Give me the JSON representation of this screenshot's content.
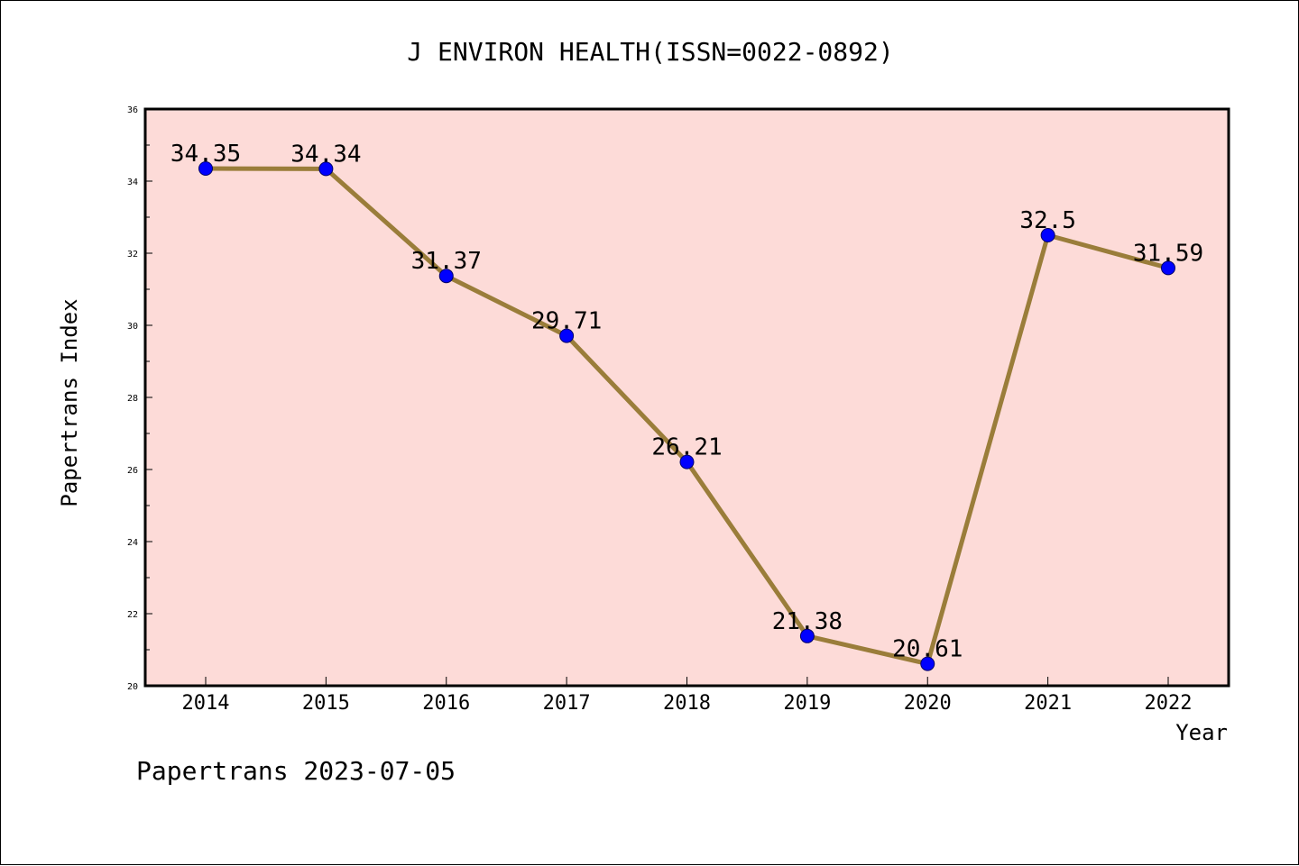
{
  "chart_data": {
    "type": "line",
    "title": "J ENVIRON HEALTH(ISSN=0022-0892)",
    "xlabel": "Year",
    "ylabel": "Papertrans Index",
    "categories": [
      "2014",
      "2015",
      "2016",
      "2017",
      "2018",
      "2019",
      "2020",
      "2021",
      "2022"
    ],
    "series": [
      {
        "values": [
          34.35,
          34.34,
          31.37,
          29.71,
          26.21,
          21.38,
          20.61,
          32.5,
          31.59
        ],
        "data_labels": [
          "34.35",
          "34.34",
          "31.37",
          "29.71",
          "26.21",
          "21.38",
          "20.61",
          "32.5",
          "31.59"
        ],
        "line_color": "#9a7d3a",
        "marker_color": "#0000ff"
      }
    ],
    "ylim": [
      20,
      36
    ],
    "y_ticks": [
      "20",
      "22",
      "24",
      "26",
      "28",
      "30",
      "32",
      "34",
      "36"
    ],
    "grid": false,
    "plot_background": "#fddbd8"
  },
  "footer": {
    "text": "Papertrans 2023-07-05"
  }
}
